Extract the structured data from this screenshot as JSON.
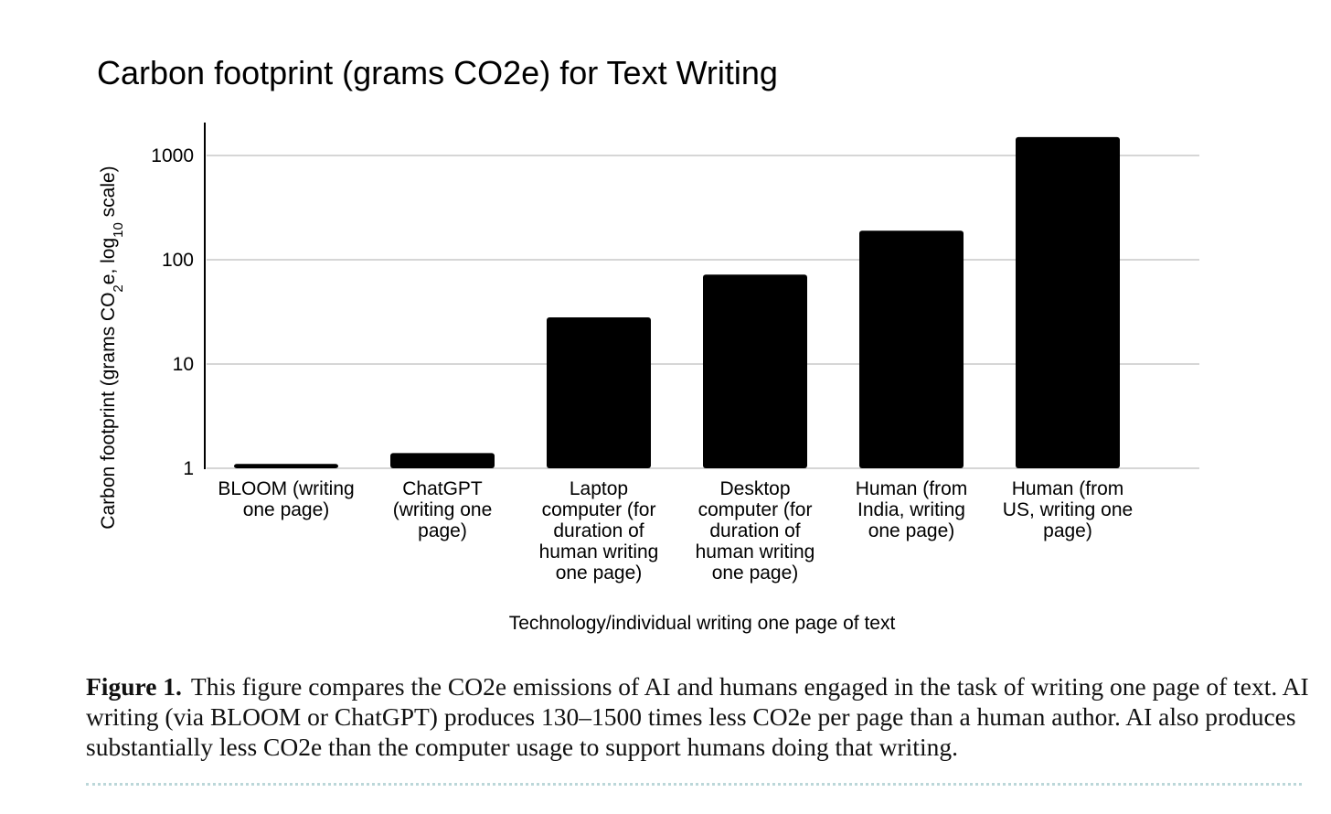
{
  "chart_data": {
    "type": "bar",
    "title": "Carbon footprint (grams CO2e) for Text Writing",
    "ylabel_parts": [
      "Carbon footprint (grams CO",
      "2",
      "e, log",
      "10",
      " scale)"
    ],
    "xlabel": "Technology/individual writing one page of text",
    "yscale": "log10",
    "ylim": [
      1,
      2000
    ],
    "yticks": [
      {
        "value": 1,
        "label": "1"
      },
      {
        "value": 10,
        "label": "10"
      },
      {
        "value": 100,
        "label": "100"
      },
      {
        "value": 1000,
        "label": "1000"
      }
    ],
    "grid": true,
    "bar_color": "#000000",
    "categories": [
      {
        "lines": [
          "BLOOM (writing",
          "one page)"
        ]
      },
      {
        "lines": [
          "ChatGPT",
          "(writing one",
          "page)"
        ]
      },
      {
        "lines": [
          "Laptop",
          "computer (for",
          "duration of",
          "human writing",
          "one page)"
        ]
      },
      {
        "lines": [
          "Desktop",
          "computer (for",
          "duration of",
          "human writing",
          "one page)"
        ]
      },
      {
        "lines": [
          "Human (from",
          "India, writing",
          "one page)"
        ]
      },
      {
        "lines": [
          "Human (from",
          "US, writing one",
          "page)"
        ]
      }
    ],
    "values": [
      1.1,
      1.4,
      28,
      72,
      190,
      1500
    ]
  },
  "caption": {
    "label": "Figure 1.",
    "text": "This figure compares the CO2e emissions of AI and humans engaged in the task of writing one page of text. AI writing (via BLOOM or ChatGPT) produces 130–1500 times less CO2e per page than a human author. AI also produces substantially less CO2e than the computer usage to support humans doing that writing."
  }
}
